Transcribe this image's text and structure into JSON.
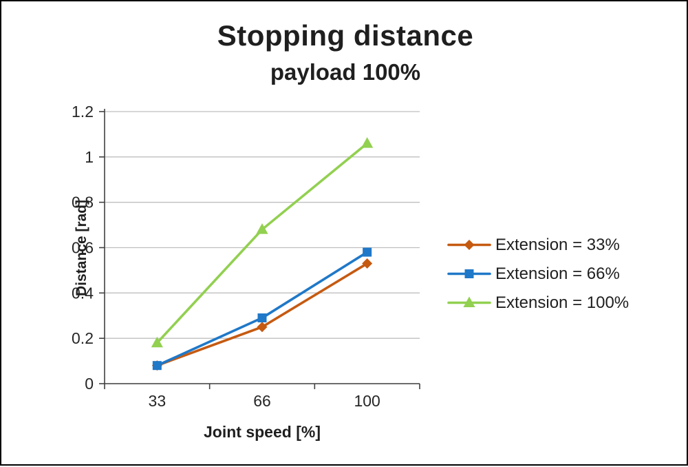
{
  "page": {
    "background": "#ffffff",
    "border_color": "#000000"
  },
  "chart_data": {
    "type": "line",
    "title": "Stopping distance",
    "subtitle": "payload 100%",
    "xlabel": "Joint speed [%]",
    "ylabel": "Distance [rad]",
    "x": [
      33,
      66,
      100
    ],
    "x_tick_labels": [
      "33",
      "66",
      "100"
    ],
    "ylim": [
      0,
      1.2
    ],
    "y_ticks": [
      0,
      0.2,
      0.4,
      0.6,
      0.8,
      1,
      1.2
    ],
    "y_tick_labels": [
      "0",
      "0.2",
      "0.4",
      "0.6",
      "0.8",
      "1",
      "1.2"
    ],
    "grid": true,
    "legend_position": "right",
    "gridline_color": "#bfbfbf",
    "axis_color": "#404040",
    "tick_label_color": "#262626",
    "series": [
      {
        "name": "Extension = 33%",
        "values": [
          0.08,
          0.25,
          0.53
        ],
        "color": "#c55a11",
        "marker": "diamond"
      },
      {
        "name": "Extension = 66%",
        "values": [
          0.08,
          0.29,
          0.58
        ],
        "color": "#1f78c8",
        "marker": "square"
      },
      {
        "name": "Extension = 100%",
        "values": [
          0.18,
          0.68,
          1.06
        ],
        "color": "#92d050",
        "marker": "triangle"
      }
    ]
  }
}
